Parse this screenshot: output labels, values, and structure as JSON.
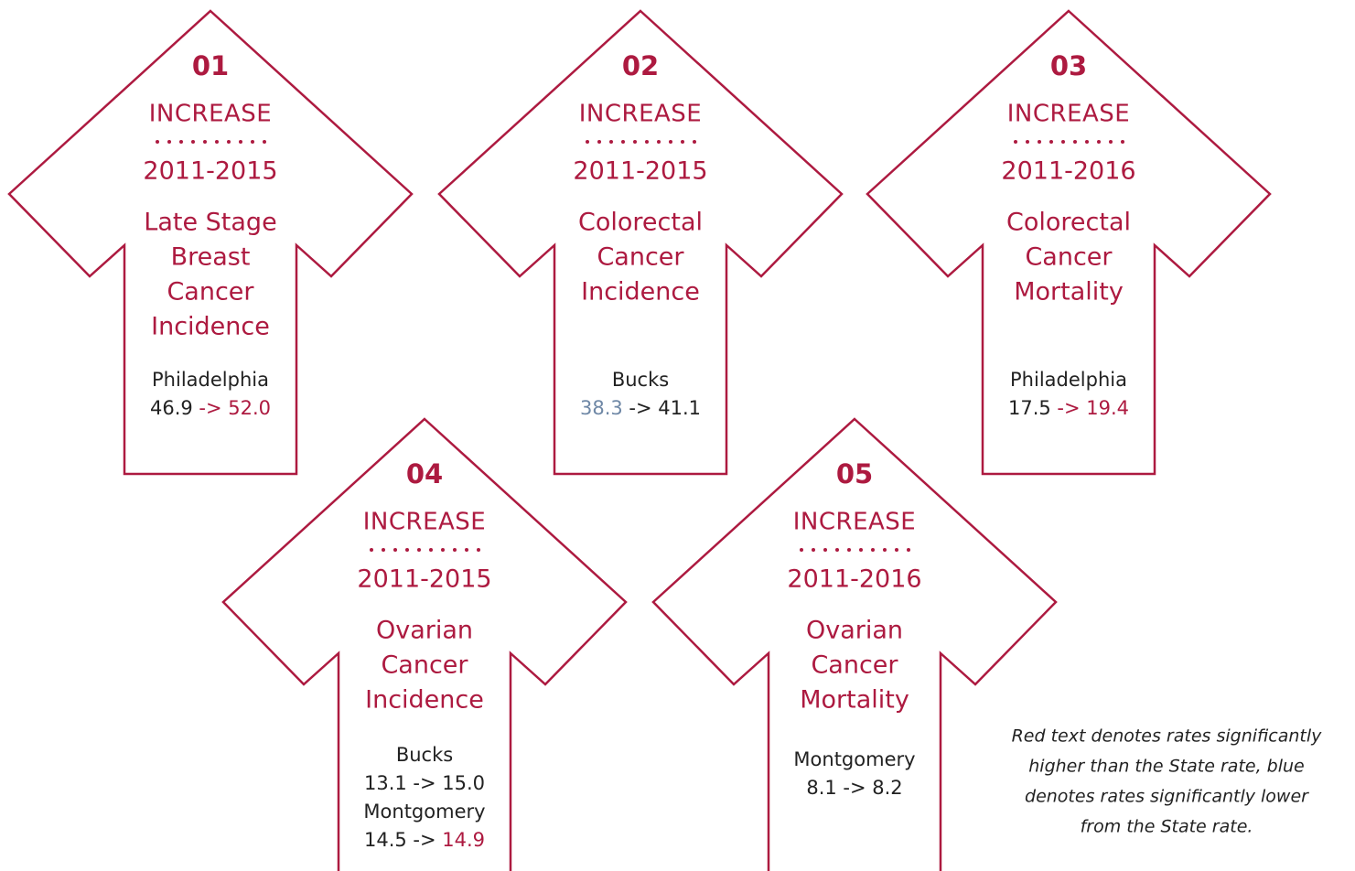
{
  "arrows": [
    {
      "number": "01",
      "label": "INCREASE",
      "years": "2011-2015",
      "title": [
        "Late Stage",
        "Breast",
        "Cancer",
        "Incidence"
      ],
      "entries": [
        {
          "place": "Philadelphia",
          "rate": [
            {
              "text": "46.9 ",
              "color": "#222222"
            },
            {
              "text": "-> 52.0",
              "color": "#ad1a40"
            }
          ]
        }
      ]
    },
    {
      "number": "02",
      "label": "INCREASE",
      "years": "2011-2015",
      "title": [
        "Colorectal",
        "Cancer",
        "Incidence"
      ],
      "entries": [
        {
          "place": "Bucks",
          "rate": [
            {
              "text": "38.3 ",
              "color": "#6f88a6"
            },
            {
              "text": "-> 41.1",
              "color": "#222222"
            }
          ]
        }
      ]
    },
    {
      "number": "03",
      "label": "INCREASE",
      "years": "2011-2016",
      "title": [
        "Colorectal",
        "Cancer",
        "Mortality"
      ],
      "entries": [
        {
          "place": "Philadelphia",
          "rate": [
            {
              "text": "17.5 ",
              "color": "#222222"
            },
            {
              "text": "-> 19.4",
              "color": "#ad1a40"
            }
          ]
        }
      ]
    },
    {
      "number": "04",
      "label": "INCREASE",
      "years": "2011-2015",
      "title": [
        "Ovarian",
        "Cancer",
        "Incidence"
      ],
      "entries": [
        {
          "place": "Bucks",
          "rate": [
            {
              "text": "13.1 -> 15.0",
              "color": "#222222"
            }
          ]
        },
        {
          "place": "Montgomery",
          "rate": [
            {
              "text": "14.5 -> ",
              "color": "#222222"
            },
            {
              "text": "14.9",
              "color": "#ad1a40"
            }
          ]
        }
      ]
    },
    {
      "number": "05",
      "label": "INCREASE",
      "years": "2011-2016",
      "title": [
        "Ovarian",
        "Cancer",
        "Mortality"
      ],
      "entries": [
        {
          "place": "Montgomery",
          "rate": [
            {
              "text": "8.1 -> 8.2",
              "color": "#222222"
            }
          ]
        }
      ]
    }
  ],
  "note": [
    "Red text denotes rates significantly",
    "higher than the State rate, blue",
    "denotes rates significantly lower",
    "from the State rate."
  ]
}
